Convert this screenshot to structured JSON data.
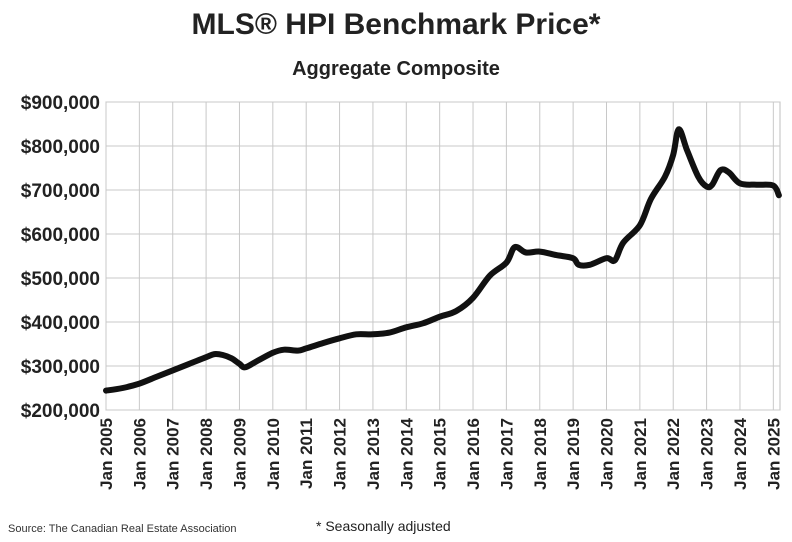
{
  "chart_data": {
    "type": "line",
    "title": "MLS® HPI Benchmark Price*",
    "subtitle": "Aggregate Composite",
    "xlabel": "",
    "ylabel": "",
    "ylim": [
      200000,
      900000
    ],
    "y_ticks": [
      "$200,000",
      "$300,000",
      "$400,000",
      "$500,000",
      "$600,000",
      "$700,000",
      "$800,000",
      "$900,000"
    ],
    "x_ticks": [
      "Jan 2005",
      "Jan 2006",
      "Jan 2007",
      "Jan 2008",
      "Jan 2009",
      "Jan 2010",
      "Jan 2011",
      "Jan 2012",
      "Jan 2013",
      "Jan 2014",
      "Jan 2015",
      "Jan 2016",
      "Jan 2017",
      "Jan 2018",
      "Jan 2019",
      "Jan 2020",
      "Jan 2021",
      "Jan 2022",
      "Jan 2023",
      "Jan 2024",
      "Jan 2025"
    ],
    "grid": true,
    "line_color": "#111111",
    "series": [
      {
        "values": [
          [
            "2005-01",
            244000
          ],
          [
            "2005-07",
            250000
          ],
          [
            "2006-01",
            260000
          ],
          [
            "2006-07",
            275000
          ],
          [
            "2007-01",
            290000
          ],
          [
            "2007-07",
            305000
          ],
          [
            "2008-01",
            320000
          ],
          [
            "2008-04",
            327000
          ],
          [
            "2008-07",
            325000
          ],
          [
            "2008-10",
            318000
          ],
          [
            "2009-01",
            305000
          ],
          [
            "2009-03",
            297000
          ],
          [
            "2009-07",
            310000
          ],
          [
            "2010-01",
            330000
          ],
          [
            "2010-05",
            337000
          ],
          [
            "2010-10",
            335000
          ],
          [
            "2011-01",
            340000
          ],
          [
            "2011-07",
            352000
          ],
          [
            "2012-01",
            363000
          ],
          [
            "2012-07",
            372000
          ],
          [
            "2013-01",
            372000
          ],
          [
            "2013-07",
            376000
          ],
          [
            "2014-01",
            388000
          ],
          [
            "2014-07",
            397000
          ],
          [
            "2015-01",
            412000
          ],
          [
            "2015-07",
            425000
          ],
          [
            "2016-01",
            455000
          ],
          [
            "2016-07",
            505000
          ],
          [
            "2017-01",
            535000
          ],
          [
            "2017-04",
            570000
          ],
          [
            "2017-08",
            558000
          ],
          [
            "2018-01",
            560000
          ],
          [
            "2018-07",
            552000
          ],
          [
            "2019-01",
            545000
          ],
          [
            "2019-03",
            530000
          ],
          [
            "2019-07",
            530000
          ],
          [
            "2020-01",
            545000
          ],
          [
            "2020-04",
            540000
          ],
          [
            "2020-07",
            580000
          ],
          [
            "2021-01",
            620000
          ],
          [
            "2021-05",
            680000
          ],
          [
            "2021-10",
            730000
          ],
          [
            "2022-01",
            780000
          ],
          [
            "2022-03",
            838000
          ],
          [
            "2022-06",
            790000
          ],
          [
            "2022-10",
            730000
          ],
          [
            "2023-01",
            708000
          ],
          [
            "2023-03",
            712000
          ],
          [
            "2023-06",
            745000
          ],
          [
            "2023-09",
            740000
          ],
          [
            "2024-01",
            715000
          ],
          [
            "2024-07",
            712000
          ],
          [
            "2025-01",
            710000
          ],
          [
            "2025-03",
            688000
          ]
        ]
      }
    ]
  },
  "footnote": "* Seasonally adjusted",
  "source": "Source: The Canadian Real Estate Association"
}
